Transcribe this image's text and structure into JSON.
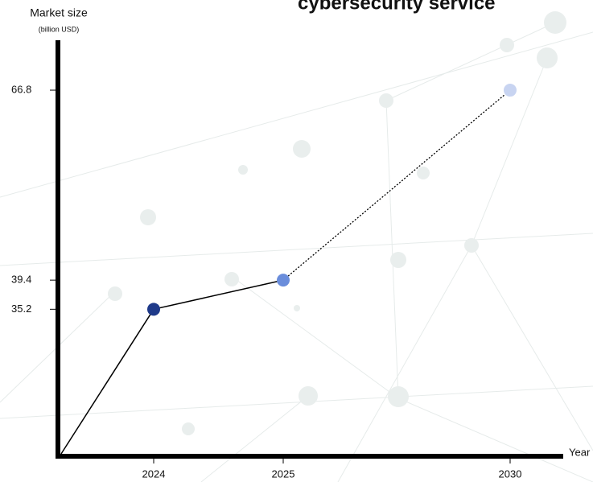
{
  "chart_data": {
    "type": "line",
    "title": "cybersecurity service",
    "y_label": "Market size",
    "y_unit": "(billion USD)",
    "x_label": "Year",
    "categories": [
      "2024",
      "2025",
      "2030"
    ],
    "values": [
      35.2,
      39.4,
      66.8
    ],
    "colors": [
      "#1f3a8a",
      "#6a8ddb",
      "#c8d4f1"
    ],
    "ylim": [
      14,
      74
    ],
    "yticks": [
      35.2,
      39.4,
      66.8
    ]
  }
}
